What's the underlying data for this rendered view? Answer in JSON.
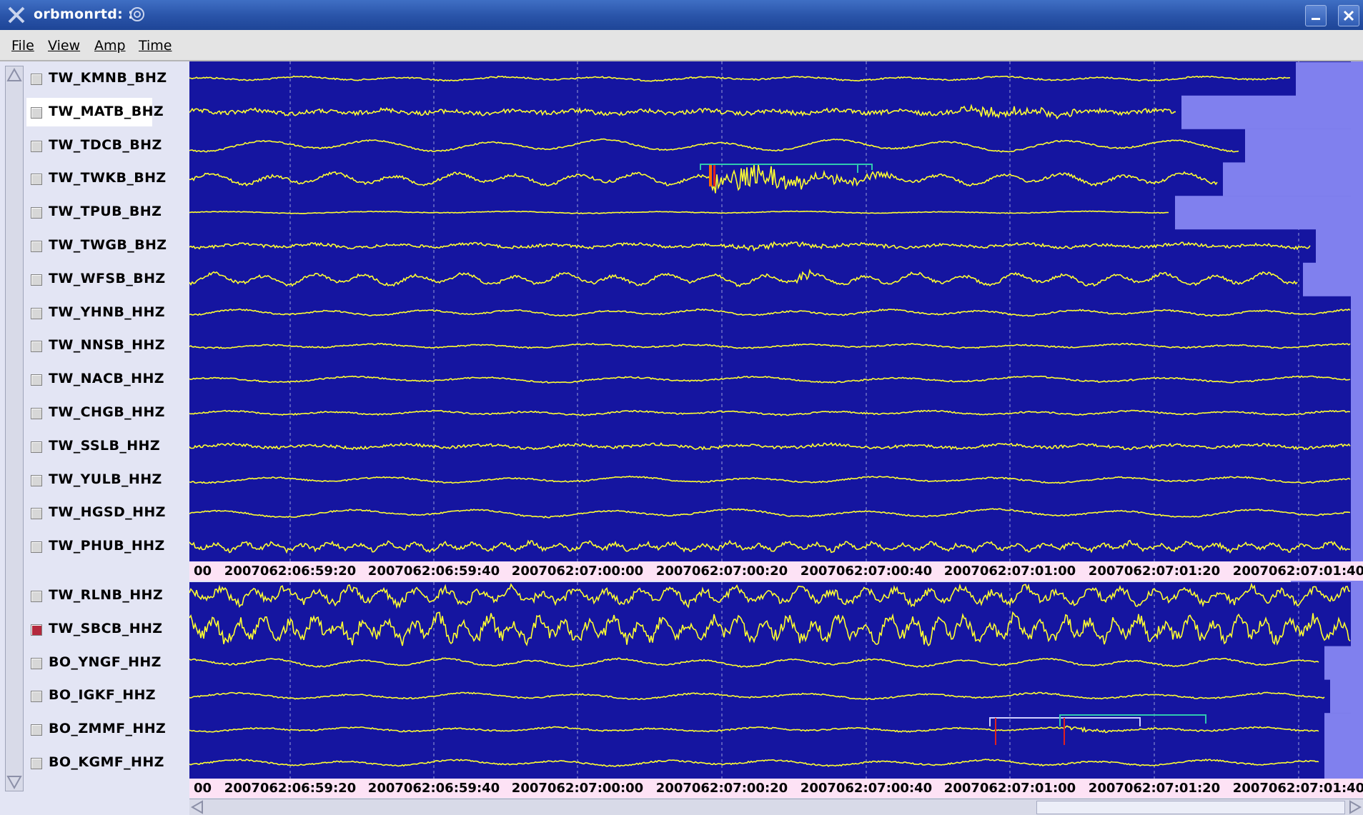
{
  "window": {
    "title": "orbmonrtd: :"
  },
  "menu": [
    "File",
    "View",
    "Amp",
    "Time"
  ],
  "group1": [
    {
      "name": "TW_KMNB_BHZ",
      "checked": false
    },
    {
      "name": "TW_MATB_BHZ",
      "checked": false,
      "selected": true
    },
    {
      "name": "TW_TDCB_BHZ",
      "checked": false
    },
    {
      "name": "TW_TWKB_BHZ",
      "checked": false
    },
    {
      "name": "TW_TPUB_BHZ",
      "checked": false
    },
    {
      "name": "TW_TWGB_BHZ",
      "checked": false
    },
    {
      "name": "TW_WFSB_BHZ",
      "checked": false
    },
    {
      "name": "TW_YHNB_HHZ",
      "checked": false
    },
    {
      "name": "TW_NNSB_HHZ",
      "checked": false
    },
    {
      "name": "TW_NACB_HHZ",
      "checked": false
    },
    {
      "name": "TW_CHGB_HHZ",
      "checked": false
    },
    {
      "name": "TW_SSLB_HHZ",
      "checked": false
    },
    {
      "name": "TW_YULB_HHZ",
      "checked": false
    },
    {
      "name": "TW_HGSD_HHZ",
      "checked": false
    },
    {
      "name": "TW_PHUB_HHZ",
      "checked": false
    }
  ],
  "group2": [
    {
      "name": "TW_RLNB_HHZ",
      "checked": false
    },
    {
      "name": "TW_SBCB_HHZ",
      "checked": true
    },
    {
      "name": "BO_YNGF_HHZ",
      "checked": false
    },
    {
      "name": "BO_IGKF_HHZ",
      "checked": false
    },
    {
      "name": "BO_ZMMF_HHZ",
      "checked": false
    },
    {
      "name": "BO_KGMF_HHZ",
      "checked": false
    }
  ],
  "time_axis": {
    "partial_left": "00",
    "labels": [
      "2007062:06:59:20",
      "2007062:06:59:40",
      "2007062:07:00:00",
      "2007062:07:00:20",
      "2007062:07:00:40",
      "2007062:07:01:00",
      "2007062:07:01:20",
      "2007062:07:01:40"
    ]
  },
  "colors": {
    "background": "#1515a0",
    "trace": "#ffff30",
    "gridline": "#9aa0d8",
    "gap_fill": "#8080ee",
    "timebar": "#fde2f5"
  }
}
